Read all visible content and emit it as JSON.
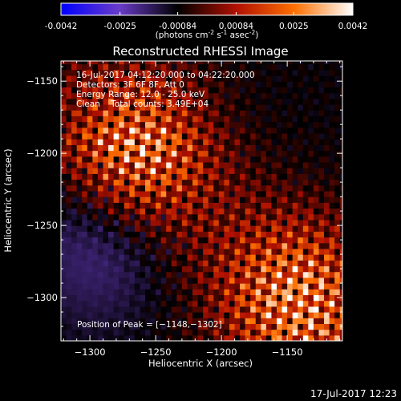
{
  "colorbar": {
    "ticks": [
      "-0.0042",
      "-0.0025",
      "-0.00084",
      "0.00084",
      "0.0025",
      "0.0042"
    ],
    "tick_values": [
      -0.0042,
      -0.0025,
      -0.00084,
      0.00084,
      0.0025,
      0.0042
    ],
    "unit_parts": [
      "(photons cm",
      "-2",
      " s",
      "-1",
      " asec",
      "-2",
      ")"
    ],
    "range": [
      -0.0042,
      0.0042
    ],
    "colormap": [
      "#0000ff",
      "#6a3cc8",
      "#000000",
      "#b01000",
      "#ff7000",
      "#ffffff"
    ]
  },
  "chart_data": {
    "type": "heatmap",
    "title": "Reconstructed RHESSI Image",
    "xlabel": "Heliocentric X (arcsec)",
    "ylabel": "Heliocentric Y (arcsec)",
    "xlim": [
      -1322,
      -1108
    ],
    "ylim": [
      -1330,
      -1136
    ],
    "xticks": [
      -1300,
      -1250,
      -1200,
      -1150
    ],
    "xtick_labels": [
      "−1300",
      "−1250",
      "−1200",
      "−1150"
    ],
    "yticks": [
      -1300,
      -1250,
      -1200,
      -1150
    ],
    "ytick_labels": [
      "−1300",
      "−1250",
      "−1200",
      "−1150"
    ],
    "bright_sources": [
      {
        "x": -1265,
        "y": -1195,
        "relative_intensity": 1.0
      },
      {
        "x": -1140,
        "y": -1300,
        "relative_intensity": 1.0
      }
    ],
    "negative_region": {
      "x": -1290,
      "y": -1260
    },
    "annotations": [
      "16-Jul-2017 04:12:20.000 to 04:22:20.000",
      "Detectors: 3F 6F 8F, Att 0",
      "Energy Range: 12.0 - 25.0 keV",
      "Clean    Total counts: 3.49E+04"
    ],
    "peak_label": "Position of Peak = [−1148,−1302]",
    "peak": {
      "x": -1148,
      "y": -1302
    }
  },
  "timestamp": "17-Jul-2017 12:23"
}
